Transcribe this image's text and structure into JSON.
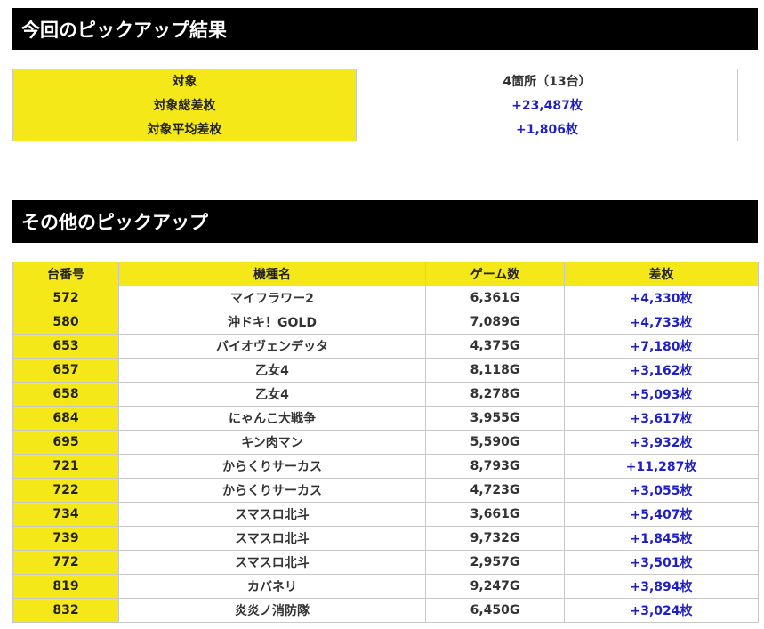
{
  "section1": {
    "title": "今回のピックアップ結果",
    "rows": [
      {
        "label": "対象",
        "value": "4箇所（13台）",
        "highlight": false
      },
      {
        "label": "対象総差枚",
        "value": "+23,487枚",
        "highlight": true
      },
      {
        "label": "対象平均差枚",
        "value": "+1,806枚",
        "highlight": true
      }
    ]
  },
  "section2": {
    "title": "その他のピックアップ",
    "headers": [
      "台番号",
      "機種名",
      "ゲーム数",
      "差枚"
    ],
    "rows": [
      {
        "num": "572",
        "machine": "マイフラワー2",
        "games": "6,361G",
        "diff": "+4,330枚"
      },
      {
        "num": "580",
        "machine": "沖ドキ！GOLD",
        "games": "7,089G",
        "diff": "+4,733枚"
      },
      {
        "num": "653",
        "machine": "バイオヴェンデッタ",
        "games": "4,375G",
        "diff": "+7,180枚"
      },
      {
        "num": "657",
        "machine": "乙女4",
        "games": "8,118G",
        "diff": "+3,162枚"
      },
      {
        "num": "658",
        "machine": "乙女4",
        "games": "8,278G",
        "diff": "+5,093枚"
      },
      {
        "num": "684",
        "machine": "にゃんこ大戦争",
        "games": "3,955G",
        "diff": "+3,617枚"
      },
      {
        "num": "695",
        "machine": "キン肉マン",
        "games": "5,590G",
        "diff": "+3,932枚"
      },
      {
        "num": "721",
        "machine": "からくりサーカス",
        "games": "8,793G",
        "diff": "+11,287枚"
      },
      {
        "num": "722",
        "machine": "からくりサーカス",
        "games": "4,723G",
        "diff": "+3,055枚"
      },
      {
        "num": "734",
        "machine": "スマスロ北斗",
        "games": "3,661G",
        "diff": "+5,407枚"
      },
      {
        "num": "739",
        "machine": "スマスロ北斗",
        "games": "9,732G",
        "diff": "+1,845枚"
      },
      {
        "num": "772",
        "machine": "スマスロ北斗",
        "games": "2,957G",
        "diff": "+3,501枚"
      },
      {
        "num": "819",
        "machine": "カバネリ",
        "games": "9,247G",
        "diff": "+3,894枚"
      },
      {
        "num": "832",
        "machine": "炎炎ノ消防隊",
        "games": "6,450G",
        "diff": "+3,024枚"
      }
    ]
  },
  "colors": {
    "header_bg": "#000000",
    "label_bg": "#f5e818",
    "value_blue": "#1f1fc8"
  }
}
